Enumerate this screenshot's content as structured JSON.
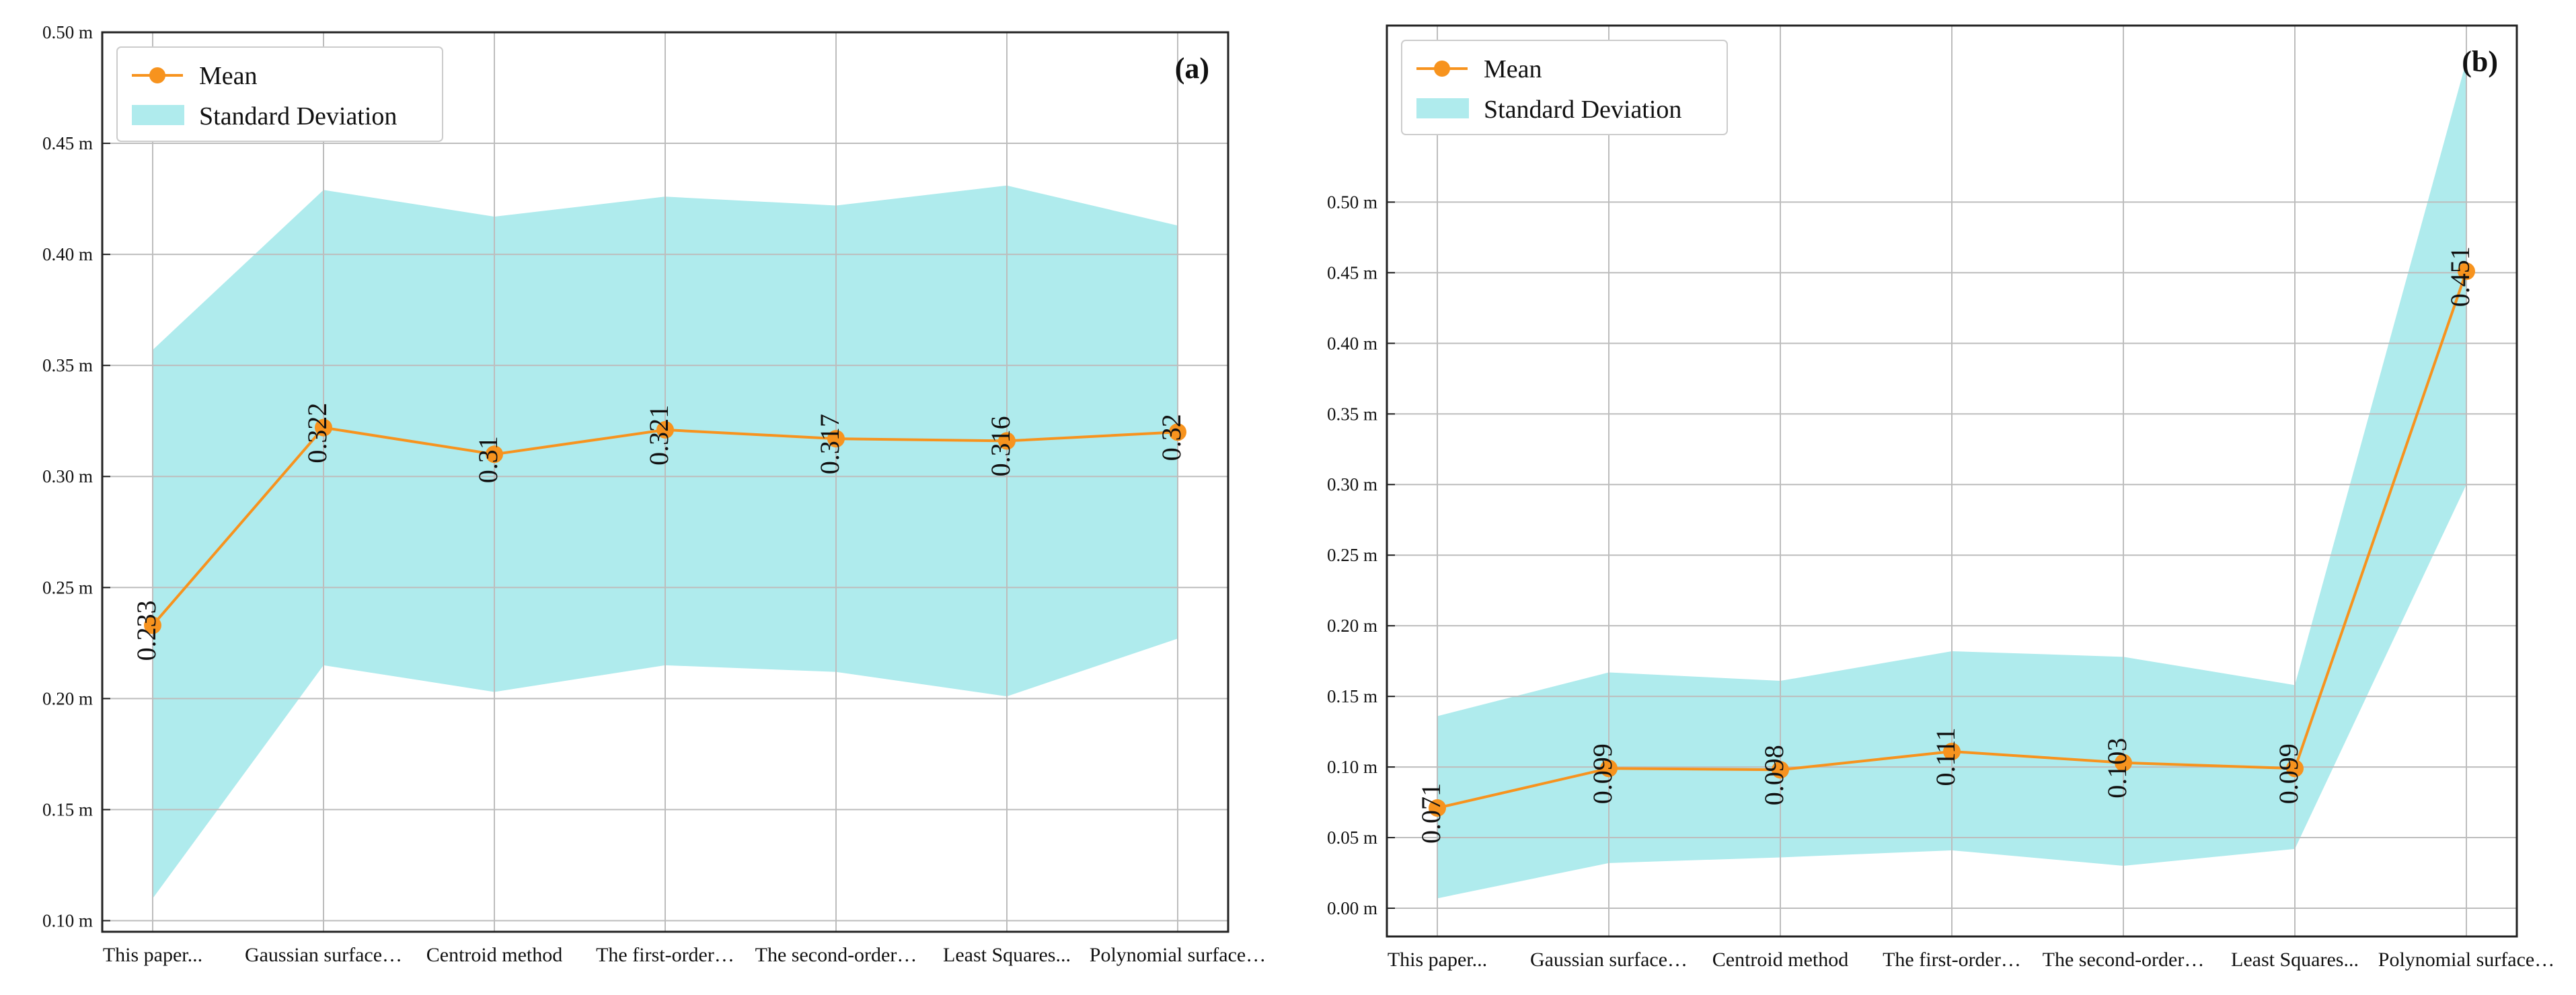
{
  "colors": {
    "mean": "#F7931E",
    "std_fill": "#AFEBED",
    "grid": "#BDBDBD",
    "axis": "#222222"
  },
  "legend": {
    "mean_label": "Mean",
    "std_label": "Standard Deviation"
  },
  "chart_data": [
    {
      "type": "line",
      "panel_label": "(a)",
      "categories": [
        "This paper...",
        "Gaussian surface…",
        "Centroid method",
        "The first-order…",
        "The second-order…",
        "Least Squares...",
        "Polynomial surface…"
      ],
      "series": [
        {
          "name": "Mean",
          "values": [
            0.233,
            0.322,
            0.31,
            0.321,
            0.317,
            0.316,
            0.32
          ]
        }
      ],
      "std_band": {
        "name": "Standard Deviation",
        "lower": [
          0.11,
          0.215,
          0.203,
          0.215,
          0.212,
          0.201,
          0.227
        ],
        "upper": [
          0.357,
          0.429,
          0.417,
          0.426,
          0.422,
          0.431,
          0.413
        ]
      },
      "data_labels": [
        "0.233",
        "0.322",
        "0.31",
        "0.321",
        "0.317",
        "0.316",
        "0.32"
      ],
      "yticks": [
        0.1,
        0.15,
        0.2,
        0.25,
        0.3,
        0.35,
        0.4,
        0.45,
        0.5
      ],
      "ytick_labels": [
        "0.10 m",
        "0.15 m",
        "0.20 m",
        "0.25 m",
        "0.30 m",
        "0.35 m",
        "0.40 m",
        "0.45 m",
        "0.50 m"
      ],
      "ylim": [
        0.095,
        0.5
      ],
      "legend_position": "top-left",
      "grid": true
    },
    {
      "type": "line",
      "panel_label": "(b)",
      "categories": [
        "This paper...",
        "Gaussian surface…",
        "Centroid method",
        "The first-order…",
        "The second-order…",
        "Least Squares...",
        "Polynomial surface…"
      ],
      "series": [
        {
          "name": "Mean",
          "values": [
            0.071,
            0.099,
            0.098,
            0.111,
            0.103,
            0.099,
            0.451
          ]
        }
      ],
      "std_band": {
        "name": "Standard Deviation",
        "lower": [
          0.007,
          0.032,
          0.036,
          0.041,
          0.03,
          0.042,
          0.3
        ],
        "upper": [
          0.136,
          0.167,
          0.161,
          0.182,
          0.178,
          0.158,
          0.6
        ]
      },
      "data_labels": [
        "0.071",
        "0.099",
        "0.098",
        "0.111",
        "0.103",
        "0.099",
        "0.451"
      ],
      "yticks": [
        0.0,
        0.05,
        0.1,
        0.15,
        0.2,
        0.25,
        0.3,
        0.35,
        0.4,
        0.45,
        0.5
      ],
      "ytick_labels": [
        "0.00 m",
        "0.05 m",
        "0.10 m",
        "0.15 m",
        "0.20 m",
        "0.25 m",
        "0.30 m",
        "0.35 m",
        "0.40 m",
        "0.45 m",
        "0.50 m"
      ],
      "ylim": [
        -0.02,
        0.625
      ],
      "legend_position": "top-left",
      "grid": true
    }
  ]
}
